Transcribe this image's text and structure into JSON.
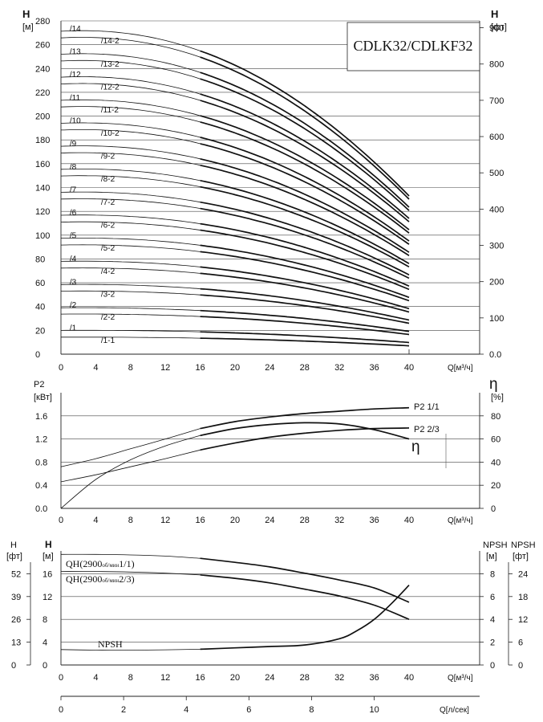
{
  "chart_data": [
    {
      "type": "line",
      "title": "CDLK32/CDLKF32",
      "xlabel": "Q[м³/ч]",
      "x_ticks": [
        0,
        4,
        8,
        12,
        16,
        20,
        24,
        28,
        32,
        36,
        40
      ],
      "xlim": [
        0,
        44
      ],
      "ylabel_left": "H",
      "ylabel_left_unit": "[м]",
      "ylim_left": [
        0,
        280
      ],
      "y_ticks_left": [
        0,
        20,
        40,
        60,
        80,
        100,
        120,
        140,
        160,
        180,
        200,
        220,
        240,
        260,
        280
      ],
      "ylabel_right": "H",
      "ylabel_right_unit": "[фт]",
      "ylim_right": [
        0,
        919
      ],
      "y_ticks_right": [
        "0.0",
        "100",
        "200",
        "300",
        "400",
        "500",
        "600",
        "700",
        "800",
        "900"
      ],
      "y_ticks_right_values": [
        0,
        100,
        200,
        300,
        400,
        500,
        600,
        700,
        800,
        900
      ],
      "series": [
        {
          "name": "/1-1",
          "shutoff": 14.3
        },
        {
          "name": "/1",
          "shutoff": 20.0
        },
        {
          "name": "/2-2",
          "shutoff": 33.7
        },
        {
          "name": "/2",
          "shutoff": 39.0
        },
        {
          "name": "/3-2",
          "shutoff": 53.0
        },
        {
          "name": "/3",
          "shutoff": 58.5
        },
        {
          "name": "/4-2",
          "shutoff": 72.3
        },
        {
          "name": "/4",
          "shutoff": 78.0
        },
        {
          "name": "/5-2",
          "shutoff": 91.7
        },
        {
          "name": "/5",
          "shutoff": 97.4
        },
        {
          "name": "/6-2",
          "shutoff": 111.0
        },
        {
          "name": "/6",
          "shutoff": 116.7
        },
        {
          "name": "/7-2",
          "shutoff": 130.3
        },
        {
          "name": "/7",
          "shutoff": 136.0
        },
        {
          "name": "/8-2",
          "shutoff": 149.7
        },
        {
          "name": "/8",
          "shutoff": 155.3
        },
        {
          "name": "/9-2",
          "shutoff": 169.0
        },
        {
          "name": "/9",
          "shutoff": 174.7
        },
        {
          "name": "/10-2",
          "shutoff": 188.3
        },
        {
          "name": "/10",
          "shutoff": 194.0
        },
        {
          "name": "/11-2",
          "shutoff": 207.7
        },
        {
          "name": "/11",
          "shutoff": 213.3
        },
        {
          "name": "/12-2",
          "shutoff": 227.0
        },
        {
          "name": "/12",
          "shutoff": 232.7
        },
        {
          "name": "/13-2",
          "shutoff": 246.3
        },
        {
          "name": "/13",
          "shutoff": 252.0
        },
        {
          "name": "/14-2",
          "shutoff": 265.7
        },
        {
          "name": "/14",
          "shutoff": 271.3
        }
      ],
      "end_flow": 40,
      "end_head_ratio": 0.49
    },
    {
      "type": "line",
      "xlabel": "Q[м³/ч]",
      "x_ticks": [
        0,
        4,
        8,
        12,
        16,
        20,
        24,
        28,
        32,
        36,
        40
      ],
      "xlim": [
        0,
        44
      ],
      "ylabel_left": "P2",
      "ylabel_left_unit": "[кВт]",
      "ylim_left": [
        0,
        2.0
      ],
      "y_ticks_left": [
        "0.0",
        "0.4",
        "0.8",
        "1.2",
        "1.6"
      ],
      "y_ticks_left_values": [
        0,
        0.4,
        0.8,
        1.2,
        1.6
      ],
      "ylabel_right": "η",
      "ylabel_right_unit": "[%]",
      "ylim_right": [
        0,
        100
      ],
      "y_ticks_right": [
        0,
        20,
        40,
        60,
        80
      ],
      "series": [
        {
          "name": "P2 1/1",
          "axis": "left",
          "x": [
            0,
            4,
            8,
            12,
            16,
            20,
            24,
            28,
            32,
            36,
            40
          ],
          "y": [
            0.72,
            0.86,
            1.03,
            1.2,
            1.38,
            1.5,
            1.58,
            1.64,
            1.68,
            1.72,
            1.74
          ]
        },
        {
          "name": "P2 2/3",
          "axis": "left",
          "x": [
            0,
            4,
            8,
            12,
            16,
            20,
            24,
            28,
            32,
            36,
            40
          ],
          "y": [
            0.46,
            0.58,
            0.72,
            0.86,
            1.01,
            1.13,
            1.23,
            1.3,
            1.35,
            1.38,
            1.39
          ]
        },
        {
          "name": "η",
          "axis": "right",
          "x": [
            0,
            4,
            8,
            12,
            16,
            20,
            24,
            28,
            32,
            36,
            40
          ],
          "y": [
            0,
            25,
            42,
            54,
            63,
            69,
            72.5,
            74,
            73,
            68,
            60
          ]
        }
      ]
    },
    {
      "type": "line",
      "xlabel": "Q[м³/ч]",
      "x_ticks": [
        0,
        4,
        8,
        12,
        16,
        20,
        24,
        28,
        32,
        36,
        40
      ],
      "xlim": [
        0,
        44
      ],
      "ylabel_left_outer": "H",
      "ylabel_left_outer_unit": "[фт]",
      "y_ticks_left_outer": [
        0,
        13,
        26,
        39,
        52
      ],
      "ylabel_left": "H",
      "ylabel_left_unit": "[м]",
      "ylim_left": [
        0,
        20
      ],
      "y_ticks_left": [
        0,
        4,
        8,
        12,
        16
      ],
      "ylabel_right": "NPSH",
      "ylabel_right_unit": "[м]",
      "ylim_right": [
        0,
        10
      ],
      "y_ticks_right": [
        0,
        2,
        4,
        6,
        8
      ],
      "ylabel_right_outer": "NPSH",
      "ylabel_right_outer_unit": "[фт]",
      "y_ticks_right_outer": [
        0,
        6,
        12,
        18,
        24
      ],
      "x2label": "Q[л/сек]",
      "x2_ticks": [
        0,
        2,
        4,
        6,
        8,
        10
      ],
      "series": [
        {
          "name": "QH(2900об/мин1/1)",
          "label_main": "QH(2900",
          "label_sub": "об/мин",
          "label_tail": "1/1)",
          "axis": "left",
          "x": [
            0,
            4,
            8,
            12,
            16,
            20,
            24,
            28,
            32,
            36,
            40
          ],
          "y": [
            19.4,
            19.4,
            19.3,
            19.1,
            18.7,
            18.0,
            17.2,
            16.1,
            14.9,
            13.5,
            11.0
          ]
        },
        {
          "name": "QH(2900об/мин2/3)",
          "label_main": "QH(2900",
          "label_sub": "об/мин",
          "label_tail": "2/3)",
          "axis": "left",
          "x": [
            0,
            4,
            8,
            12,
            16,
            20,
            24,
            28,
            32,
            36,
            40
          ],
          "y": [
            16.4,
            16.4,
            16.3,
            16.1,
            15.8,
            15.2,
            14.4,
            13.3,
            12.1,
            10.5,
            8.0
          ]
        },
        {
          "name": "NPSH",
          "axis": "right",
          "x": [
            0,
            4,
            8,
            12,
            16,
            20,
            24,
            28,
            32,
            34,
            36,
            38,
            40
          ],
          "y": [
            1.35,
            1.3,
            1.3,
            1.33,
            1.38,
            1.5,
            1.62,
            1.75,
            2.3,
            3.0,
            4.0,
            5.4,
            7.0
          ]
        }
      ]
    }
  ]
}
